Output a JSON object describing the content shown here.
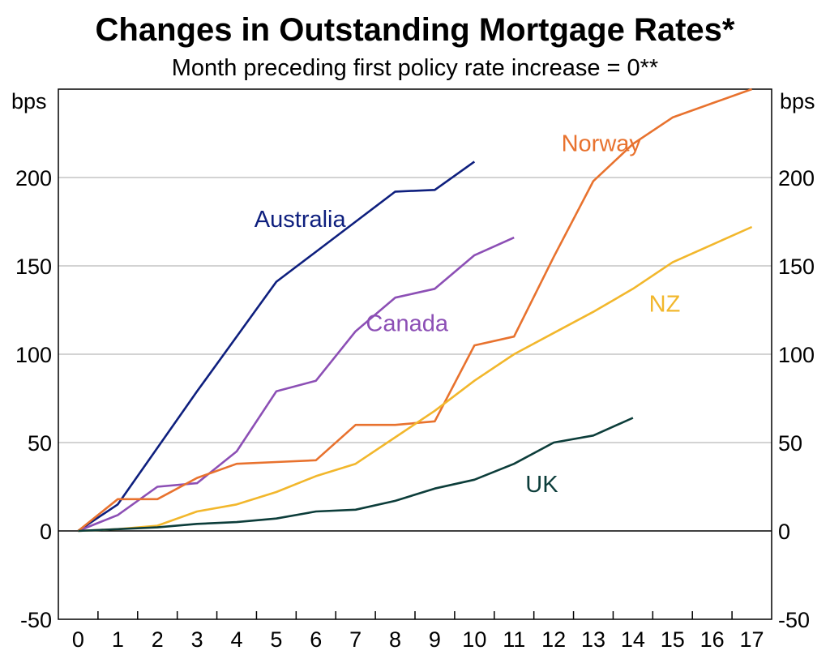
{
  "chart_data": {
    "type": "line",
    "title": "Changes in Outstanding Mortgage Rates*",
    "subtitle": "Month preceding first policy rate increase = 0**",
    "ylabel_left": "bps",
    "ylabel_right": "bps",
    "ylim": [
      -50,
      250
    ],
    "yticks": [
      -50,
      0,
      50,
      100,
      150,
      200
    ],
    "xlim": [
      -0.5,
      17.5
    ],
    "xticks": [
      0,
      1,
      2,
      3,
      4,
      5,
      6,
      7,
      8,
      9,
      10,
      11,
      12,
      13,
      14,
      15,
      16,
      17
    ],
    "grid": true,
    "series": [
      {
        "name": "Australia",
        "color": "#0e1f7e",
        "x": [
          0,
          1,
          2,
          3,
          4,
          5,
          6,
          7,
          8,
          9,
          10
        ],
        "values": [
          0,
          15,
          47,
          79,
          110,
          141,
          158,
          175,
          192,
          193,
          209
        ]
      },
      {
        "name": "Canada",
        "color": "#8c4fb5",
        "x": [
          0,
          1,
          2,
          3,
          4,
          5,
          6,
          7,
          8,
          9,
          10,
          11
        ],
        "values": [
          0,
          9,
          25,
          27,
          45,
          79,
          85,
          113,
          132,
          137,
          156,
          166
        ]
      },
      {
        "name": "Norway",
        "color": "#e8722e",
        "x": [
          0,
          1,
          2,
          3,
          4,
          5,
          6,
          7,
          8,
          9,
          10,
          11,
          12,
          13,
          14,
          15,
          16,
          17
        ],
        "values": [
          0,
          18,
          18,
          30,
          38,
          39,
          40,
          60,
          60,
          62,
          105,
          110,
          155,
          198,
          219,
          234,
          242,
          250
        ]
      },
      {
        "name": "NZ",
        "color": "#f2b72c",
        "x": [
          0,
          1,
          2,
          3,
          4,
          5,
          6,
          7,
          8,
          9,
          10,
          11,
          12,
          13,
          14,
          15,
          16,
          17
        ],
        "values": [
          0,
          1,
          3,
          11,
          15,
          22,
          31,
          38,
          53,
          68,
          85,
          100,
          112,
          124,
          137,
          152,
          162,
          172
        ]
      },
      {
        "name": "UK",
        "color": "#0c3d3a",
        "x": [
          0,
          1,
          2,
          3,
          4,
          5,
          6,
          7,
          8,
          9,
          10,
          11,
          12,
          13,
          14
        ],
        "values": [
          0,
          1,
          2,
          4,
          5,
          7,
          11,
          12,
          17,
          24,
          29,
          38,
          50,
          54,
          64
        ]
      }
    ],
    "annotations": [
      {
        "text": "Australia",
        "series": "Australia",
        "x": 5.6,
        "y": 172
      },
      {
        "text": "Canada",
        "series": "Canada",
        "x": 8.3,
        "y": 113
      },
      {
        "text": "Norway",
        "series": "Norway",
        "x": 13.2,
        "y": 215
      },
      {
        "text": "NZ",
        "series": "NZ",
        "x": 14.8,
        "y": 124
      },
      {
        "text": "UK",
        "series": "UK",
        "x": 11.7,
        "y": 22
      }
    ]
  }
}
